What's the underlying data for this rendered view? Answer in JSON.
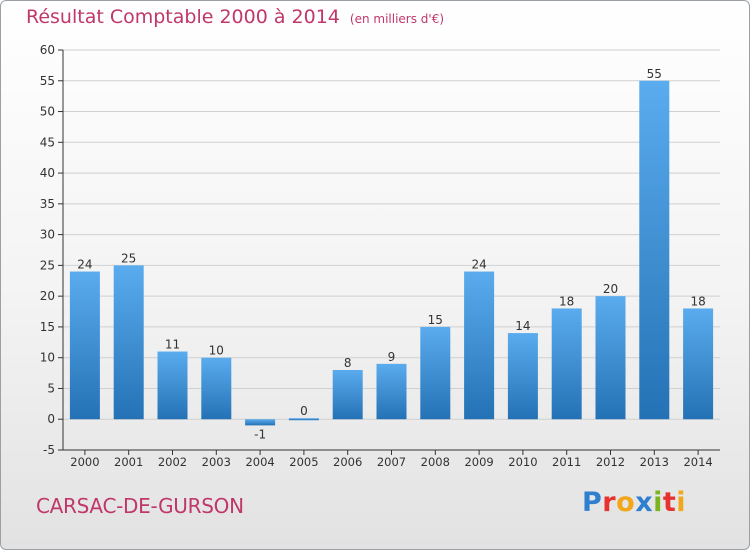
{
  "header": {
    "title": "Résultat Comptable 2000 à 2014",
    "subtitle": "(en milliers d'€)"
  },
  "commune": "CARSAC-DE-GURSON",
  "logo": {
    "text": "Proxiti",
    "letters": [
      {
        "char": "P",
        "color": "#2f7fd0"
      },
      {
        "char": "r",
        "color": "#e7332f"
      },
      {
        "char": "o",
        "color": "#f2a71b"
      },
      {
        "char": "x",
        "color": "#2f7fd0"
      },
      {
        "char": "i",
        "color": "#7ab51d"
      },
      {
        "char": "t",
        "color": "#e7332f"
      },
      {
        "char": "i",
        "color": "#f2a71b"
      }
    ]
  },
  "colors": {
    "title": "#c0376a",
    "bar_light": "#5aacee",
    "bar_dark": "#2472b5",
    "grid": "#d0d0d0",
    "axis": "#333333"
  },
  "chart_data": {
    "type": "bar",
    "title": "Résultat Comptable 2000 à 2014",
    "subtitle": "(en milliers d'€)",
    "categories": [
      "2000",
      "2001",
      "2002",
      "2003",
      "2004",
      "2005",
      "2006",
      "2007",
      "2008",
      "2009",
      "2010",
      "2011",
      "2012",
      "2013",
      "2014"
    ],
    "values": [
      24,
      25,
      11,
      10,
      -1,
      0,
      8,
      9,
      15,
      24,
      14,
      18,
      20,
      55,
      18
    ],
    "labels": [
      "24",
      "25",
      "11",
      "10",
      "-1",
      "0",
      "8",
      "9",
      "15",
      "24",
      "14",
      "18",
      "20",
      "55",
      "18"
    ],
    "ylim": [
      -5,
      60
    ],
    "yticks": [
      -5,
      0,
      5,
      10,
      15,
      20,
      25,
      30,
      35,
      40,
      45,
      50,
      55,
      60
    ],
    "grid": true,
    "xlabel": "",
    "ylabel": ""
  }
}
